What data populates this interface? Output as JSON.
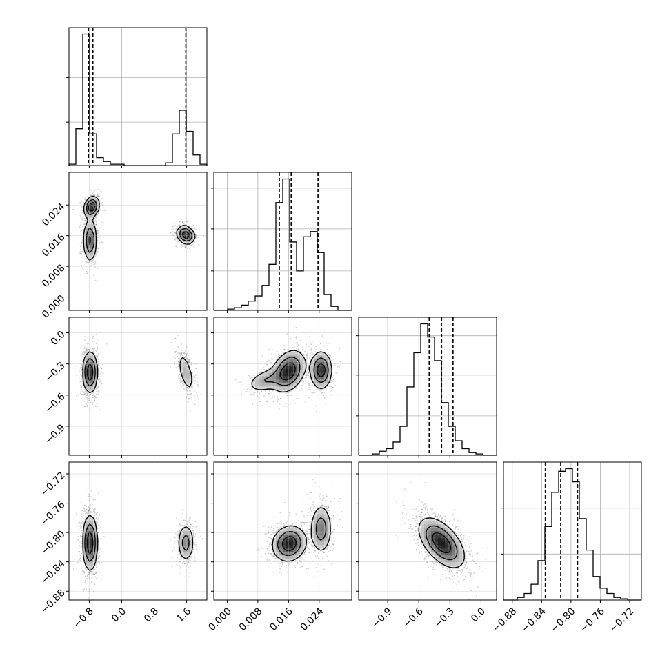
{
  "chart_data": {
    "type": "corner",
    "grid": true,
    "parameters": [
      {
        "range": [
          -1.3,
          2.1
        ],
        "ticks": [
          -0.8,
          0.0,
          0.8,
          1.6
        ],
        "tick_labels": [
          "−0.8",
          "0.0",
          "0.8",
          "1.6"
        ],
        "quantiles": [
          -0.82,
          -0.71,
          1.58
        ],
        "histogram": {
          "edges_range": [
            -1.3,
            2.1
          ],
          "counts": [
            0.01,
            0.28,
            1.0,
            0.24,
            0.06,
            0.03,
            0.01,
            0.01,
            0.0,
            0.0,
            0.0,
            0.0,
            0.0,
            0.0,
            0.02,
            0.24,
            0.42,
            0.26,
            0.08,
            0.01
          ],
          "ymax": 1.05,
          "y_gridlines": [
            0.33,
            0.67
          ]
        },
        "clusters": [
          {
            "center": -0.78,
            "sigma": 0.09
          },
          {
            "center": 1.58,
            "sigma": 0.11
          }
        ]
      },
      {
        "range": [
          -0.0035,
          0.0325
        ],
        "ticks": [
          0.0,
          0.008,
          0.016,
          0.024
        ],
        "tick_labels": [
          "0.000",
          "0.008",
          "0.016",
          "0.024"
        ],
        "quantiles": [
          0.0136,
          0.0167,
          0.0237
        ],
        "histogram": {
          "edges_range": [
            -0.0035,
            0.0325
          ],
          "counts": [
            0.0,
            0.0,
            0.01,
            0.02,
            0.04,
            0.07,
            0.11,
            0.19,
            0.35,
            0.82,
            1.0,
            0.52,
            0.3,
            0.56,
            0.6,
            0.44,
            0.12,
            0.03,
            0.0,
            0.0
          ],
          "ymax": 1.05,
          "y_gridlines": [
            0.3,
            0.62,
            0.93
          ]
        },
        "clusters": [
          {
            "center": 0.0158,
            "sigma": 0.0022
          },
          {
            "center": 0.0246,
            "sigma": 0.0014
          }
        ]
      },
      {
        "range": [
          -1.18,
          0.15
        ],
        "ticks": [
          -0.9,
          -0.6,
          -0.3,
          0.0
        ],
        "tick_labels": [
          "−0.9",
          "−0.6",
          "−0.3",
          "0.0"
        ],
        "quantiles": [
          -0.5,
          -0.38,
          -0.27
        ],
        "histogram": {
          "edges_range": [
            -1.18,
            0.15
          ],
          "counts": [
            0.0,
            0.0,
            0.01,
            0.03,
            0.05,
            0.1,
            0.22,
            0.52,
            0.78,
            1.0,
            0.9,
            0.72,
            0.4,
            0.22,
            0.11,
            0.05,
            0.02,
            0.01,
            0.0,
            0.0
          ],
          "ymax": 1.05,
          "y_gridlines": [
            0.3,
            0.61,
            0.91
          ]
        },
        "clusters": [
          {
            "center": -0.38,
            "sigma": 0.1
          }
        ]
      },
      {
        "range": [
          -0.892,
          -0.704
        ],
        "ticks": [
          -0.88,
          -0.84,
          -0.8,
          -0.76,
          -0.72
        ],
        "tick_labels": [
          "−0.88",
          "−0.84",
          "−0.80",
          "−0.76",
          "−0.72"
        ],
        "quantiles": [
          -0.835,
          -0.814,
          -0.791
        ],
        "histogram": {
          "edges_range": [
            -0.892,
            -0.704
          ],
          "counts": [
            0.0,
            0.0,
            0.02,
            0.05,
            0.12,
            0.3,
            0.56,
            0.82,
            0.98,
            1.0,
            0.9,
            0.62,
            0.38,
            0.18,
            0.09,
            0.05,
            0.02,
            0.01,
            0.0,
            0.0
          ],
          "ymax": 1.05,
          "y_gridlines": [
            0.35,
            0.7
          ]
        },
        "clusters": [
          {
            "center": -0.814,
            "sigma": 0.017
          }
        ]
      }
    ],
    "joint_panels": [
      {
        "x_param": 0,
        "y_param": 1,
        "modes": [
          {
            "mx": -0.74,
            "my": 0.0235,
            "sx": 0.09,
            "sy": 0.0014,
            "rho": 0.2,
            "weight": 0.3
          },
          {
            "mx": -0.78,
            "my": 0.0148,
            "sx": 0.08,
            "sy": 0.0028,
            "rho": 0.0,
            "weight": 0.4
          },
          {
            "mx": 1.58,
            "my": 0.0162,
            "sx": 0.11,
            "sy": 0.0012,
            "rho": -0.2,
            "weight": 0.3
          }
        ]
      },
      {
        "x_param": 0,
        "y_param": 2,
        "modes": [
          {
            "mx": -0.78,
            "my": -0.38,
            "sx": 0.09,
            "sy": 0.1,
            "rho": 0.0,
            "weight": 0.7
          },
          {
            "mx": 1.58,
            "my": -0.38,
            "sx": 0.1,
            "sy": 0.1,
            "rho": -0.6,
            "weight": 0.3
          }
        ]
      },
      {
        "x_param": 0,
        "y_param": 3,
        "modes": [
          {
            "mx": -0.78,
            "my": -0.814,
            "sx": 0.09,
            "sy": 0.019,
            "rho": 0.0,
            "weight": 0.7
          },
          {
            "mx": 1.58,
            "my": -0.814,
            "sx": 0.1,
            "sy": 0.013,
            "rho": 0.0,
            "weight": 0.3
          }
        ]
      },
      {
        "x_param": 1,
        "y_param": 2,
        "modes": [
          {
            "mx": 0.016,
            "my": -0.37,
            "sx": 0.0022,
            "sy": 0.1,
            "rho": 0.3,
            "weight": 0.55
          },
          {
            "mx": 0.0245,
            "my": -0.36,
            "sx": 0.0014,
            "sy": 0.09,
            "rho": 0.0,
            "weight": 0.3
          },
          {
            "mx": 0.01,
            "my": -0.46,
            "sx": 0.0025,
            "sy": 0.06,
            "rho": 0.4,
            "weight": 0.15
          }
        ]
      },
      {
        "x_param": 1,
        "y_param": 3,
        "modes": [
          {
            "mx": 0.0162,
            "my": -0.815,
            "sx": 0.0022,
            "sy": 0.012,
            "rho": 0.1,
            "weight": 0.65
          },
          {
            "mx": 0.0245,
            "my": -0.795,
            "sx": 0.0014,
            "sy": 0.017,
            "rho": 0.0,
            "weight": 0.35
          }
        ]
      },
      {
        "x_param": 2,
        "y_param": 3,
        "modes": [
          {
            "mx": -0.38,
            "my": -0.814,
            "sx": 0.11,
            "sy": 0.017,
            "rho": -0.55,
            "weight": 1.0
          }
        ]
      }
    ]
  }
}
